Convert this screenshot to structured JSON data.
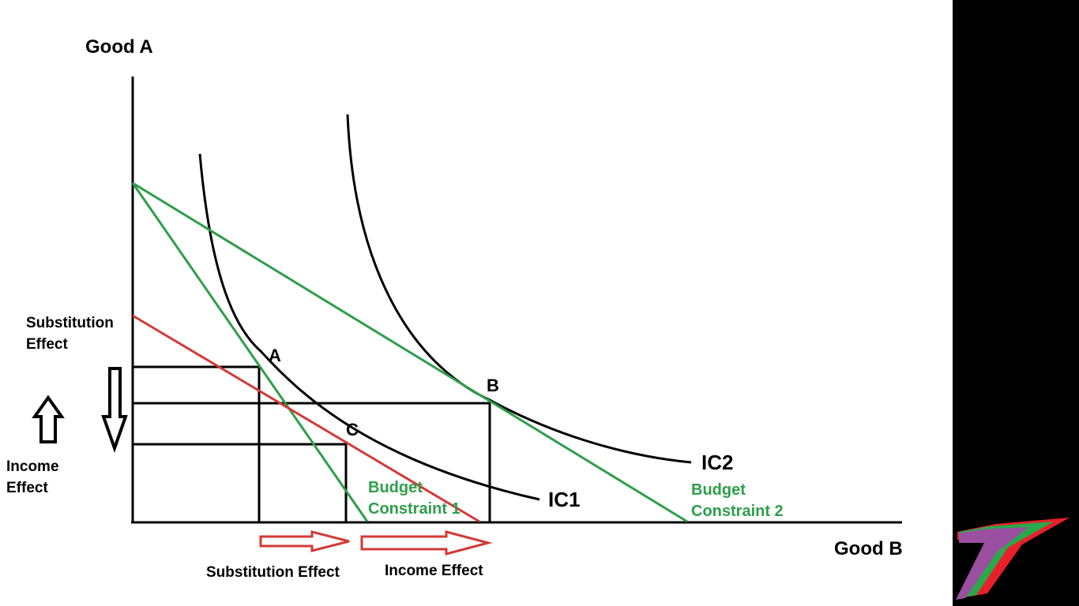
{
  "axes": {
    "y_label": "Good A",
    "x_label": "Good B"
  },
  "curves": {
    "ic1": "IC1",
    "ic2": "IC2"
  },
  "points": {
    "a": "A",
    "b": "B",
    "c": "C"
  },
  "budget_constraint_1": [
    "Budget",
    "Constraint 1"
  ],
  "budget_constraint_2": [
    "Budget",
    "Constraint 2"
  ],
  "effects": {
    "substitution_vertical": [
      "Substitution",
      "Effect"
    ],
    "income_vertical": [
      "Income",
      "Effect"
    ],
    "substitution_horizontal": "Substitution Effect",
    "income_horizontal": "Income Effect"
  },
  "colors": {
    "axes": "#000000",
    "indifference_curves": "#000000",
    "budget_lines": "#2e9e4a",
    "shifted_budget": "#d23a36",
    "effect_arrows": "#d23a36",
    "panel": "#000000",
    "logo_red": "#e8202a",
    "logo_green": "#2aa84a",
    "logo_purple": "#9a4fa0"
  },
  "icons": [
    "arrow-down-outline",
    "arrow-up-outline",
    "arrow-right-outline",
    "logo-mark"
  ]
}
